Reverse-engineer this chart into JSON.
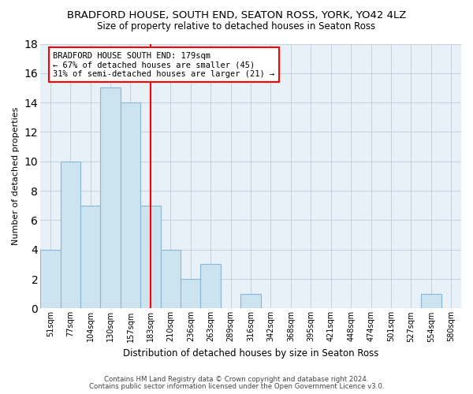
{
  "title": "BRADFORD HOUSE, SOUTH END, SEATON ROSS, YORK, YO42 4LZ",
  "subtitle": "Size of property relative to detached houses in Seaton Ross",
  "xlabel": "Distribution of detached houses by size in Seaton Ross",
  "ylabel": "Number of detached properties",
  "bin_labels": [
    "51sqm",
    "77sqm",
    "104sqm",
    "130sqm",
    "157sqm",
    "183sqm",
    "210sqm",
    "236sqm",
    "263sqm",
    "289sqm",
    "316sqm",
    "342sqm",
    "368sqm",
    "395sqm",
    "421sqm",
    "448sqm",
    "474sqm",
    "501sqm",
    "527sqm",
    "554sqm",
    "580sqm"
  ],
  "bar_values": [
    4,
    10,
    7,
    15,
    14,
    7,
    4,
    2,
    3,
    0,
    1,
    0,
    0,
    0,
    0,
    0,
    0,
    0,
    0,
    1,
    0
  ],
  "bar_color": "#cce4f0",
  "bar_edge_color": "#8ab8d4",
  "vline_x": 5,
  "vline_color": "red",
  "annotation_title": "BRADFORD HOUSE SOUTH END: 179sqm",
  "annotation_line1": "← 67% of detached houses are smaller (45)",
  "annotation_line2": "31% of semi-detached houses are larger (21) →",
  "annotation_box_color": "white",
  "annotation_box_edge_color": "red",
  "ylim": [
    0,
    18
  ],
  "yticks": [
    0,
    2,
    4,
    6,
    8,
    10,
    12,
    14,
    16,
    18
  ],
  "footnote1": "Contains HM Land Registry data © Crown copyright and database right 2024.",
  "footnote2": "Contains public sector information licensed under the Open Government Licence v3.0.",
  "bg_color": "#ffffff",
  "plot_bg_color": "#e8f0f8"
}
